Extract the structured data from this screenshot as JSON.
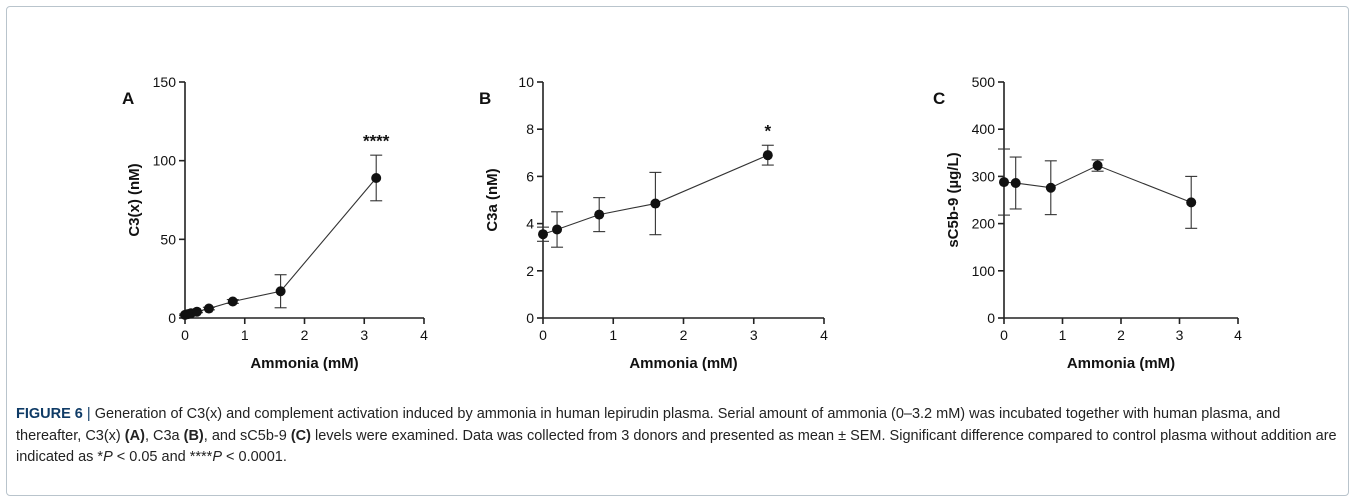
{
  "chart_data": [
    {
      "type": "scatter",
      "panel_label": "A",
      "xlabel": "Ammonia (mM)",
      "ylabel": "C3(x) (nM)",
      "xlim": [
        0,
        4
      ],
      "ylim": [
        0,
        150
      ],
      "xticks": [
        "0",
        "1",
        "2",
        "3",
        "4"
      ],
      "yticks": [
        "0",
        "50",
        "100",
        "150"
      ],
      "series": [
        {
          "x": [
            0,
            0.05,
            0.1,
            0.2,
            0.4,
            0.8,
            1.6,
            3.2
          ],
          "y": [
            2,
            2.5,
            3,
            4,
            6,
            10.5,
            17,
            89
          ],
          "err": [
            0.5,
            0.5,
            0.5,
            0.6,
            0.8,
            1.2,
            10.5,
            14.5
          ]
        }
      ],
      "annotations": [
        {
          "text": "****",
          "x": 3.2,
          "y": 104
        }
      ]
    },
    {
      "type": "scatter",
      "panel_label": "B",
      "xlabel": "Ammonia (mM)",
      "ylabel": "C3a (nM)",
      "xlim": [
        0,
        4
      ],
      "ylim": [
        0,
        10
      ],
      "xticks": [
        "0",
        "1",
        "2",
        "3",
        "4"
      ],
      "yticks": [
        "0",
        "2",
        "4",
        "6",
        "8",
        "10"
      ],
      "series": [
        {
          "x": [
            0,
            0.2,
            0.8,
            1.6,
            3.2
          ],
          "y": [
            3.55,
            3.75,
            4.38,
            4.85,
            6.9
          ],
          "err": [
            0.3,
            0.75,
            0.72,
            1.32,
            0.42
          ]
        }
      ],
      "annotations": [
        {
          "text": "*",
          "x": 3.2,
          "y": 7.35
        }
      ]
    },
    {
      "type": "scatter",
      "panel_label": "C",
      "xlabel": "Ammonia (mM)",
      "ylabel": "sC5b-9 (µg/L)",
      "xlim": [
        0,
        4
      ],
      "ylim": [
        0,
        500
      ],
      "xticks": [
        "0",
        "1",
        "2",
        "3",
        "4"
      ],
      "yticks": [
        "0",
        "100",
        "200",
        "300",
        "400",
        "500"
      ],
      "series": [
        {
          "x": [
            0,
            0.2,
            0.8,
            1.6,
            3.2
          ],
          "y": [
            288,
            286,
            276,
            323,
            245
          ],
          "err": [
            70,
            55,
            57,
            12,
            55
          ]
        }
      ],
      "annotations": []
    }
  ],
  "caption": {
    "figure_label": "FIGURE 6",
    "separator": " | ",
    "segments": [
      {
        "t": "Generation of C3(x) and complement activation induced by ammonia in human lepirudin plasma. Serial amount of ammonia (0–3.2 mM) was incubated together with human plasma, and thereafter, C3(x) ",
        "s": "n"
      },
      {
        "t": "(A)",
        "s": "b"
      },
      {
        "t": ", C3a ",
        "s": "n"
      },
      {
        "t": "(B)",
        "s": "b"
      },
      {
        "t": ", and sC5b-9 ",
        "s": "n"
      },
      {
        "t": "(C)",
        "s": "b"
      },
      {
        "t": " levels were examined. Data was collected from 3 donors and presented as mean ± SEM. Significant difference compared to control plasma without addition are indicated as *",
        "s": "n"
      },
      {
        "t": "P",
        "s": "i"
      },
      {
        "t": " < 0.05 and ****",
        "s": "n"
      },
      {
        "t": "P",
        "s": "i"
      },
      {
        "t": " < 0.0001.",
        "s": "n"
      }
    ]
  }
}
